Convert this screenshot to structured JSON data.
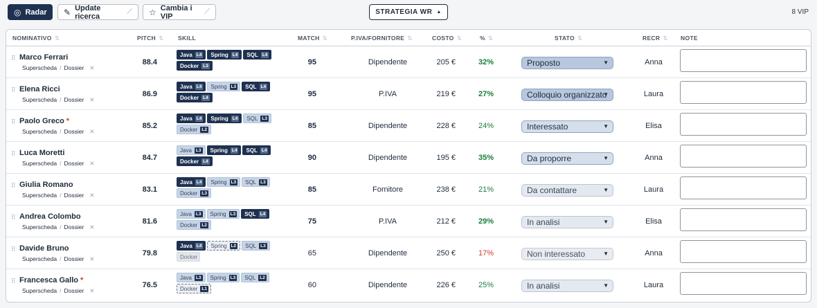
{
  "toolbar": {
    "radar_label": "Radar",
    "update_label": "Update ricerca",
    "vip_label": "Cambia i VIP",
    "strategy_label": "STRATEGIA WR",
    "vip_count": "8 VIP"
  },
  "table": {
    "headers": {
      "nominativo": "NOMINATIVO",
      "pitch": "PITCH",
      "skill": "SKILL",
      "match": "MATCH",
      "piva": "P.IVA/FORNITORE",
      "costo": "COSTO",
      "pct": "%",
      "stato": "STATO",
      "recr": "RECR",
      "note": "NOTE"
    },
    "link_superscheda": "Superscheda",
    "link_dossier": "Dossier",
    "rows": [
      {
        "name": "Marco Ferrari",
        "vip": "",
        "pitch": "88.4",
        "match": "95",
        "piva": "Dipendente",
        "costo": "205 €",
        "pct": "32%",
        "stato": "Proposto",
        "recr": "Anna",
        "note": "",
        "skills": [
          {
            "name": "Java",
            "lvl": "L4"
          },
          {
            "name": "Spring",
            "lvl": "L4"
          },
          {
            "name": "SQL",
            "lvl": "L4"
          },
          {
            "name": "Docker",
            "lvl": "L3"
          }
        ]
      },
      {
        "name": "Elena Ricci",
        "vip": "",
        "pitch": "86.9",
        "match": "95",
        "piva": "P.IVA",
        "costo": "219 €",
        "pct": "27%",
        "stato": "Colloquio organizzato",
        "recr": "Laura",
        "note": "",
        "skills": [
          {
            "name": "Java",
            "lvl": "L4"
          },
          {
            "name": "Spring",
            "lvl": "L3"
          },
          {
            "name": "SQL",
            "lvl": "L4"
          },
          {
            "name": "Docker",
            "lvl": "L4"
          }
        ]
      },
      {
        "name": "Paolo Greco",
        "vip": "*",
        "pitch": "85.2",
        "match": "85",
        "piva": "Dipendente",
        "costo": "228 €",
        "pct": "24%",
        "stato": "Interessato",
        "recr": "Elisa",
        "note": "",
        "skills": [
          {
            "name": "Java",
            "lvl": "L4"
          },
          {
            "name": "Spring",
            "lvl": "L4"
          },
          {
            "name": "SQL",
            "lvl": "L3"
          },
          {
            "name": "Docker",
            "lvl": "L2"
          }
        ]
      },
      {
        "name": "Luca Moretti",
        "vip": "",
        "pitch": "84.7",
        "match": "90",
        "piva": "Dipendente",
        "costo": "195 €",
        "pct": "35%",
        "stato": "Da proporre",
        "recr": "Anna",
        "note": "",
        "skills": [
          {
            "name": "Java",
            "lvl": "L3"
          },
          {
            "name": "Spring",
            "lvl": "L4"
          },
          {
            "name": "SQL",
            "lvl": "L4"
          },
          {
            "name": "Docker",
            "lvl": "L4"
          }
        ]
      },
      {
        "name": "Giulia Romano",
        "vip": "",
        "pitch": "83.1",
        "match": "85",
        "piva": "Fornitore",
        "costo": "238 €",
        "pct": "21%",
        "stato": "Da contattare",
        "recr": "Laura",
        "note": "",
        "skills": [
          {
            "name": "Java",
            "lvl": "L4"
          },
          {
            "name": "Spring",
            "lvl": "L3"
          },
          {
            "name": "SQL",
            "lvl": "L3"
          },
          {
            "name": "Docker",
            "lvl": "L3"
          }
        ]
      },
      {
        "name": "Andrea Colombo",
        "vip": "",
        "pitch": "81.6",
        "match": "75",
        "piva": "P.IVA",
        "costo": "212 €",
        "pct": "29%",
        "stato": "In analisi",
        "recr": "Elisa",
        "note": "",
        "skills": [
          {
            "name": "Java",
            "lvl": "L3"
          },
          {
            "name": "Spring",
            "lvl": "L3"
          },
          {
            "name": "SQL",
            "lvl": "L4"
          },
          {
            "name": "Docker",
            "lvl": "L2"
          }
        ]
      },
      {
        "name": "Davide Bruno",
        "vip": "",
        "pitch": "79.8",
        "match": "65",
        "piva": "Dipendente",
        "costo": "250 €",
        "pct": "17%",
        "stato": "Non interessato",
        "recr": "Anna",
        "note": "",
        "skills": [
          {
            "name": "Java",
            "lvl": "L4"
          },
          {
            "name": "Spring",
            "lvl": "L2"
          },
          {
            "name": "SQL",
            "lvl": "L3"
          },
          {
            "name": "Docker",
            "lvl": ""
          }
        ]
      },
      {
        "name": "Francesca Gallo",
        "vip": "*",
        "pitch": "76.5",
        "match": "60",
        "piva": "Dipendente",
        "costo": "226 €",
        "pct": "25%",
        "stato": "In analisi",
        "recr": "Laura",
        "note": "",
        "skills": [
          {
            "name": "Java",
            "lvl": "L3"
          },
          {
            "name": "Spring",
            "lvl": "L3"
          },
          {
            "name": "SQL",
            "lvl": "L2"
          },
          {
            "name": "Docker",
            "lvl": "L1"
          }
        ]
      }
    ]
  }
}
